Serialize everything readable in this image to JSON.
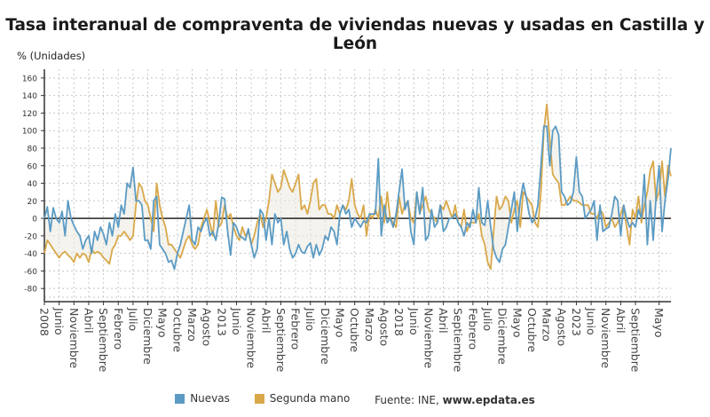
{
  "chart_data": {
    "type": "line",
    "title": "Tasa interanual de compraventa de viviendas nuevas y usadas en Castilla y León",
    "ylabel": "% (Unidades)",
    "xlabel": "",
    "x_start": "2008-01",
    "x_end": "2025-05",
    "frequency": "monthly",
    "ylim": [
      -95,
      170
    ],
    "yticks": [
      160,
      140,
      120,
      100,
      80,
      60,
      40,
      20,
      0,
      -20,
      -40,
      -60,
      -80
    ],
    "xtick_labels": [
      "2008",
      "Junio",
      "Noviembre",
      "Abril",
      "Septiembre",
      "Febrero",
      "Julio",
      "Diciembre",
      "Mayo",
      "Octubre",
      "Marzo",
      "Agosto",
      "2013",
      "Junio",
      "Noviembre",
      "Abril",
      "Septiembre",
      "Febrero",
      "Julio",
      "Diciembre",
      "Mayo",
      "Octubre",
      "Marzo",
      "Agosto",
      "2018",
      "Junio",
      "Noviembre",
      "Abril",
      "Septiembre",
      "Febrero",
      "Julio",
      "Diciembre",
      "Mayo",
      "Octubre",
      "Marzo",
      "Agosto",
      "2023",
      "Junio",
      "Noviembre",
      "Abril",
      "Septiembre",
      "Mayo"
    ],
    "xtick_months": [
      0,
      5,
      10,
      15,
      20,
      25,
      30,
      35,
      40,
      45,
      50,
      55,
      60,
      65,
      70,
      75,
      80,
      85,
      90,
      95,
      100,
      105,
      110,
      115,
      120,
      125,
      130,
      135,
      140,
      145,
      150,
      155,
      160,
      165,
      170,
      175,
      180,
      185,
      190,
      195,
      200,
      208
    ],
    "grid": true,
    "legend_position": "bottom",
    "series": [
      {
        "name": "Nuevas",
        "color": "#5b9bc4",
        "values": [
          0,
          13,
          -15,
          12,
          0,
          -5,
          8,
          -20,
          20,
          0,
          -8,
          -15,
          -20,
          -35,
          -25,
          -20,
          -40,
          -15,
          -25,
          -10,
          -18,
          -30,
          -5,
          -20,
          5,
          -10,
          15,
          5,
          40,
          35,
          58,
          20,
          20,
          15,
          -25,
          -25,
          -35,
          20,
          25,
          -30,
          -35,
          -40,
          -50,
          -48,
          -58,
          -40,
          -30,
          -15,
          0,
          15,
          -25,
          -30,
          -10,
          -15,
          -5,
          0,
          -20,
          -15,
          -25,
          -5,
          24,
          22,
          -15,
          -42,
          -5,
          -10,
          -20,
          -22,
          -25,
          -12,
          -30,
          -45,
          -35,
          10,
          5,
          -25,
          0,
          -30,
          5,
          -5,
          0,
          -30,
          -15,
          -35,
          -45,
          -40,
          -30,
          -38,
          -40,
          -32,
          -28,
          -45,
          -30,
          -42,
          -35,
          -20,
          -25,
          -10,
          -15,
          -30,
          5,
          15,
          5,
          10,
          -10,
          0,
          -5,
          -10,
          -3,
          -5,
          5,
          5,
          5,
          68,
          -20,
          15,
          -5,
          0,
          -10,
          5,
          30,
          56,
          10,
          20,
          -15,
          -30,
          30,
          5,
          35,
          -25,
          -20,
          10,
          -10,
          -5,
          15,
          -15,
          -10,
          0,
          0,
          5,
          -5,
          -10,
          -20,
          -5,
          -10,
          10,
          -5,
          35,
          -5,
          -8,
          20,
          -10,
          -35,
          -45,
          -50,
          -35,
          -30,
          -10,
          10,
          30,
          -15,
          20,
          40,
          25,
          5,
          -5,
          0,
          15,
          60,
          105,
          105,
          60,
          100,
          105,
          95,
          30,
          25,
          15,
          18,
          30,
          70,
          30,
          25,
          0,
          5,
          10,
          20,
          -25,
          15,
          -15,
          -12,
          -10,
          5,
          25,
          20,
          -20,
          15,
          0,
          -10,
          -5,
          -10,
          10,
          0,
          50,
          -30,
          20,
          -25,
          25,
          60,
          -15,
          20,
          45,
          80
        ]
      },
      {
        "name": "Segunda mano",
        "color": "#d9a84a",
        "values": [
          -40,
          -25,
          -30,
          -35,
          -40,
          -45,
          -40,
          -38,
          -42,
          -45,
          -50,
          -40,
          -45,
          -40,
          -42,
          -50,
          -35,
          -40,
          -38,
          -40,
          -45,
          -48,
          -52,
          -35,
          -30,
          -20,
          -20,
          -15,
          -20,
          -25,
          -20,
          15,
          40,
          35,
          20,
          15,
          0,
          -15,
          40,
          15,
          0,
          -10,
          -30,
          -30,
          -35,
          -40,
          -45,
          -35,
          -25,
          -20,
          -30,
          -35,
          -30,
          -10,
          0,
          10,
          -5,
          -20,
          20,
          -10,
          -5,
          15,
          0,
          5,
          -10,
          -20,
          -25,
          -10,
          -20,
          -15,
          -30,
          -20,
          -5,
          5,
          -10,
          0,
          20,
          50,
          40,
          30,
          35,
          55,
          45,
          35,
          30,
          40,
          50,
          10,
          15,
          5,
          20,
          40,
          45,
          10,
          15,
          15,
          5,
          5,
          0,
          15,
          5,
          15,
          10,
          20,
          45,
          15,
          5,
          0,
          15,
          -20,
          5,
          0,
          10,
          0,
          25,
          -5,
          30,
          0,
          -5,
          -10,
          25,
          5,
          15,
          20,
          0,
          -5,
          30,
          5,
          15,
          25,
          10,
          5,
          0,
          -5,
          15,
          10,
          20,
          10,
          0,
          15,
          -5,
          -10,
          10,
          -15,
          -5,
          -5,
          -5,
          5,
          -20,
          -30,
          -50,
          -58,
          -15,
          25,
          10,
          15,
          25,
          20,
          -5,
          10,
          20,
          -10,
          30,
          25,
          20,
          15,
          -5,
          -10,
          30,
          100,
          130,
          90,
          50,
          45,
          40,
          15,
          15,
          20,
          25,
          20,
          20,
          18,
          15,
          15,
          15,
          5,
          5,
          0,
          10,
          5,
          -10,
          -5,
          0,
          -10,
          -5,
          5,
          15,
          -10,
          -30,
          10,
          0,
          25,
          -5,
          15,
          30,
          55,
          65,
          20,
          30,
          65,
          25,
          60,
          48
        ]
      }
    ]
  },
  "legend": {
    "items": [
      {
        "label": "Nuevas",
        "color": "#5b9bc4"
      },
      {
        "label": "Segunda mano",
        "color": "#d9a84a"
      }
    ],
    "source_prefix": "Fuente: INE, ",
    "source_site": "www.epdata.es"
  }
}
